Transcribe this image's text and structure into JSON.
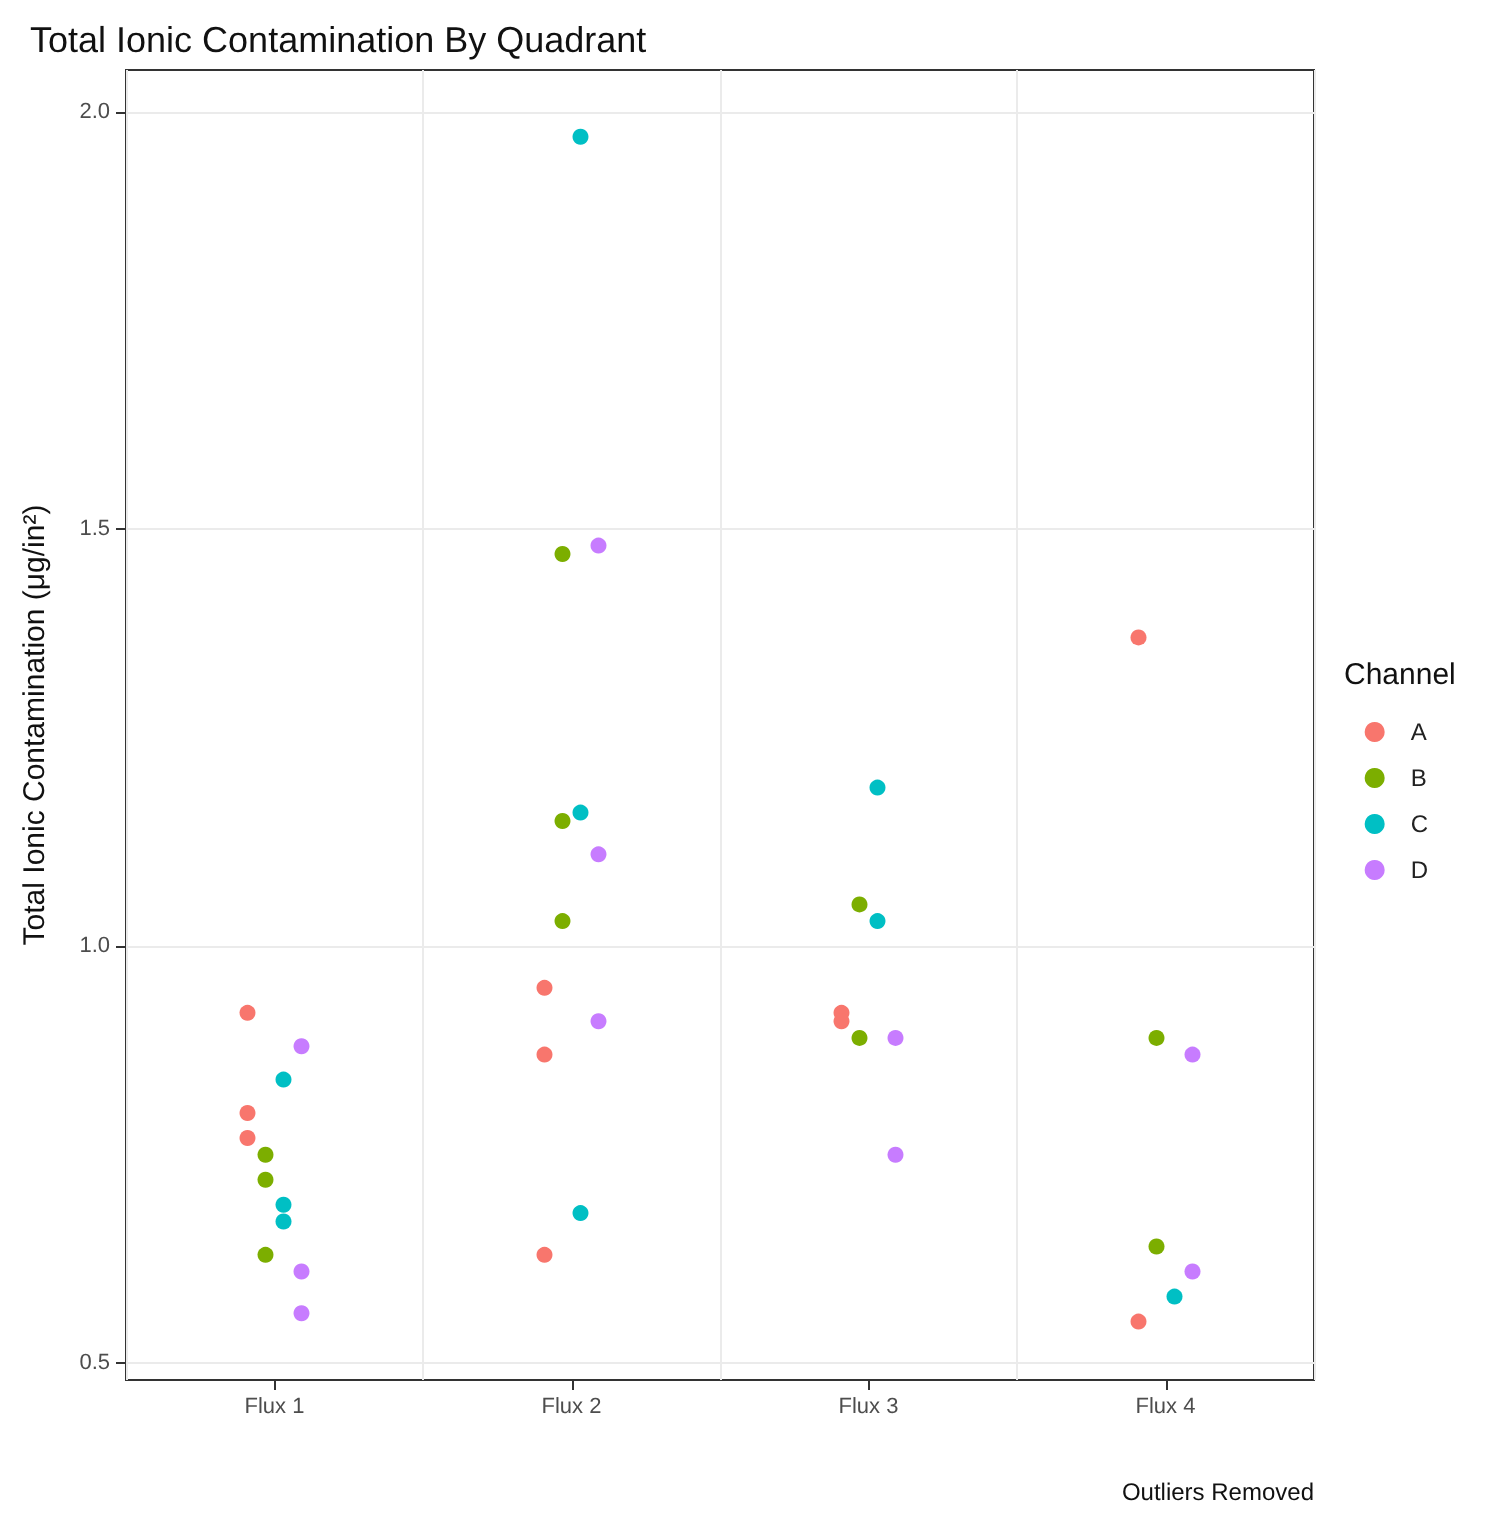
{
  "chart_data": {
    "type": "scatter",
    "title": "Total Ionic Contamination By Quadrant",
    "ylabel": "Total Ionic Contamination (μg/in²)",
    "legend_title": "Channel",
    "annotations": [
      "Outliers Removed"
    ],
    "categories": [
      "Flux 1",
      "Flux 2",
      "Flux 3",
      "Flux 4"
    ],
    "ylim": [
      0.48,
      2.05
    ],
    "yticks": [
      {
        "value": 0.5,
        "label": "0.5"
      },
      {
        "value": 1,
        "label": "1.0"
      },
      {
        "value": 1.5,
        "label": "1.5"
      },
      {
        "value": 2,
        "label": "2.0"
      }
    ],
    "grid": true,
    "legend": "right",
    "marker": "circle",
    "series": [
      {
        "name": "A",
        "color": "#f8766d",
        "x": [
          "Flux 1",
          "Flux 1",
          "Flux 1",
          "Flux 2",
          "Flux 2",
          "Flux 2",
          "Flux 3",
          "Flux 3",
          "Flux 4",
          "Flux 4"
        ],
        "values": [
          0.92,
          0.8,
          0.77,
          0.95,
          0.87,
          0.63,
          0.92,
          0.91,
          1.37,
          0.55
        ]
      },
      {
        "name": "B",
        "color": "#7cae00",
        "x": [
          "Flux 1",
          "Flux 1",
          "Flux 1",
          "Flux 2",
          "Flux 2",
          "Flux 2",
          "Flux 3",
          "Flux 3",
          "Flux 4",
          "Flux 4"
        ],
        "values": [
          0.75,
          0.72,
          0.63,
          1.15,
          1.03,
          1.47,
          0.89,
          1.05,
          0.89,
          0.64
        ]
      },
      {
        "name": "C",
        "color": "#00bfc4",
        "x": [
          "Flux 1",
          "Flux 1",
          "Flux 1",
          "Flux 2",
          "Flux 2",
          "Flux 2",
          "Flux 3",
          "Flux 3",
          "Flux 4"
        ],
        "values": [
          0.84,
          0.69,
          0.67,
          1.16,
          0.68,
          1.97,
          1.19,
          1.03,
          0.58
        ]
      },
      {
        "name": "D",
        "color": "#c77cff",
        "x": [
          "Flux 1",
          "Flux 1",
          "Flux 1",
          "Flux 2",
          "Flux 2",
          "Flux 2",
          "Flux 3",
          "Flux 3",
          "Flux 4",
          "Flux 4"
        ],
        "values": [
          0.88,
          0.61,
          0.56,
          1.11,
          0.91,
          1.48,
          0.89,
          0.75,
          0.87,
          0.61
        ]
      }
    ]
  }
}
